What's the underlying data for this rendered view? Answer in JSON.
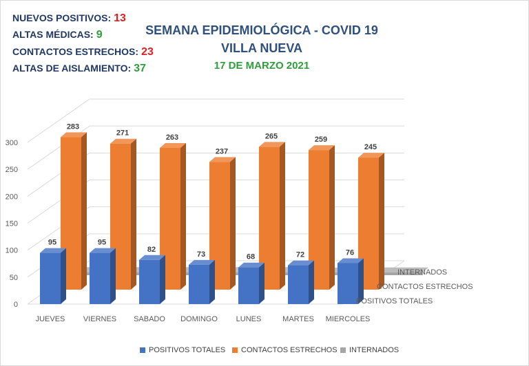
{
  "stats": [
    {
      "label": "NUEVOS POSITIVOS:",
      "value": "13",
      "color": "#e02020"
    },
    {
      "label": "ALTAS MÉDICAS:",
      "value": "9",
      "color": "#2e9e3a"
    },
    {
      "label": "CONTACTOS ESTRECHOS:",
      "value": "23",
      "color": "#e02020"
    },
    {
      "label": "ALTAS DE AISLAMIENTO:",
      "value": "37",
      "color": "#2e9e3a"
    }
  ],
  "header": {
    "title": "SEMANA EPIDEMIOLÓGICA - COVID 19",
    "subtitle": "VILLA NUEVA",
    "date": "17 DE MARZO 2021"
  },
  "colors": {
    "title": "#2f4f7f",
    "date": "#2e9e3a",
    "positivos": "#4472c4",
    "contactos": "#ed7d31",
    "internados": "#a5a5a5",
    "grid": "#d9d9d9",
    "axis_text": "#595959"
  },
  "chart_data": {
    "type": "bar",
    "style": "3d-clustered-depth",
    "categories": [
      "JUEVES",
      "VIERNES",
      "SABADO",
      "DOMINGO",
      "LUNES",
      "MARTES",
      "MIERCOLES"
    ],
    "series": [
      {
        "name": "POSITIVOS TOTALES",
        "values": [
          95,
          95,
          82,
          73,
          68,
          72,
          76
        ]
      },
      {
        "name": "CONTACTOS ESTRECHOS",
        "values": [
          283,
          271,
          263,
          237,
          265,
          259,
          245
        ]
      },
      {
        "name": "INTERNADOS",
        "values": [
          10,
          10,
          10,
          10,
          10,
          7,
          9
        ]
      }
    ],
    "y_ticks": [
      0,
      50,
      100,
      150,
      200,
      250,
      300
    ],
    "ylim": [
      0,
      300
    ],
    "depth_labels": [
      "INTERNADOS",
      "CONTACTOS ESTRECHOS",
      "POSITIVOS TOTALES"
    ],
    "legend": [
      "POSITIVOS TOTALES",
      "CONTACTOS ESTRECHOS",
      "INTERNADOS"
    ],
    "legend_position": "bottom",
    "grid": true
  }
}
